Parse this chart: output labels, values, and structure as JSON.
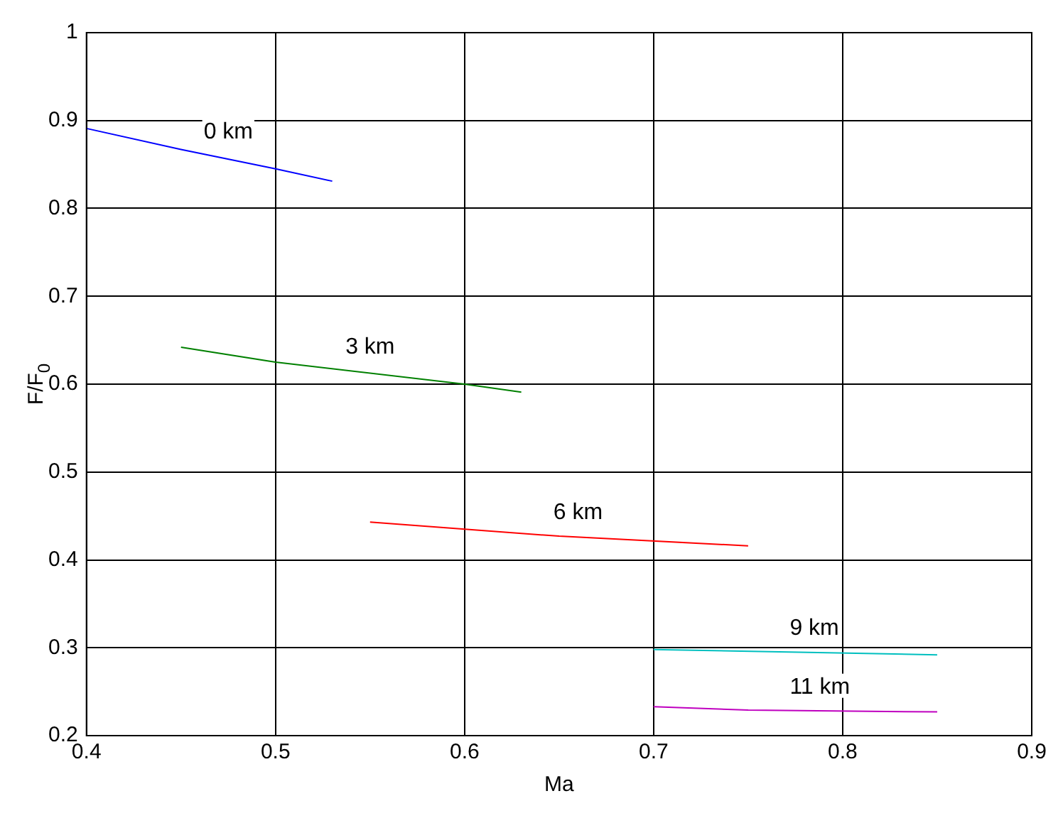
{
  "chart_data": {
    "type": "line",
    "xlabel": "Ma",
    "ylabel": "F/F$_{0}$",
    "xlim": [
      0.4,
      0.9
    ],
    "xticks": [
      0.4,
      0.5,
      0.6,
      0.7,
      0.8,
      0.9
    ],
    "ylim": [
      0.2,
      1
    ],
    "yticks": [
      0.2,
      0.3,
      0.4,
      0.5,
      0.6,
      0.7,
      0.8,
      0.9,
      1
    ],
    "grid": true,
    "legend": false,
    "marker": "none",
    "line_style": "solid",
    "series": [
      {
        "name": "0 km",
        "color": "#0000ff",
        "x": [
          0.4,
          0.45,
          0.5,
          0.53
        ],
        "values": [
          0.891,
          0.867,
          0.845,
          0.831
        ]
      },
      {
        "name": "3 km",
        "color": "#008000",
        "x": [
          0.45,
          0.5,
          0.6,
          0.63
        ],
        "values": [
          0.642,
          0.625,
          0.6,
          0.591
        ]
      },
      {
        "name": "6 km",
        "color": "#ff0000",
        "x": [
          0.55,
          0.65,
          0.75
        ],
        "values": [
          0.443,
          0.427,
          0.416
        ]
      },
      {
        "name": "9 km",
        "color": "#00bfbf",
        "x": [
          0.7,
          0.85
        ],
        "values": [
          0.298,
          0.292
        ]
      },
      {
        "name": "11 km",
        "color": "#bf00bf",
        "x": [
          0.7,
          0.75,
          0.85
        ],
        "values": [
          0.233,
          0.229,
          0.227
        ]
      }
    ]
  }
}
